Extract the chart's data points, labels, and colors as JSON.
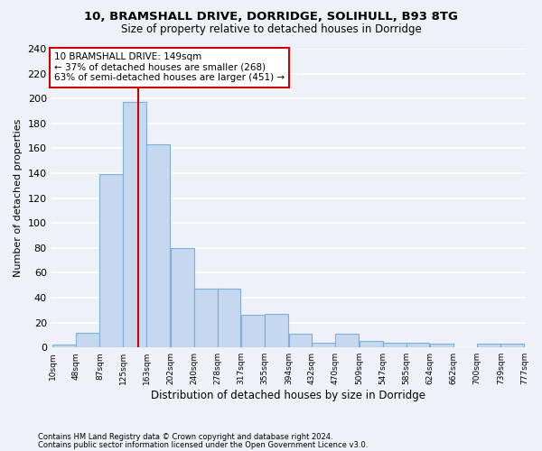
{
  "title1": "10, BRAMSHALL DRIVE, DORRIDGE, SOLIHULL, B93 8TG",
  "title2": "Size of property relative to detached houses in Dorridge",
  "xlabel": "Distribution of detached houses by size in Dorridge",
  "ylabel": "Number of detached properties",
  "footnote1": "Contains HM Land Registry data © Crown copyright and database right 2024.",
  "footnote2": "Contains public sector information licensed under the Open Government Licence v3.0.",
  "bar_left_edges": [
    10,
    48,
    87,
    125,
    163,
    202,
    240,
    278,
    317,
    355,
    394,
    432,
    470,
    509,
    547,
    585,
    624,
    662,
    700,
    739
  ],
  "bar_heights": [
    2,
    12,
    139,
    197,
    163,
    80,
    47,
    47,
    26,
    27,
    11,
    4,
    11,
    5,
    4,
    4,
    3,
    0,
    3,
    3
  ],
  "bin_width": 38,
  "bar_color": "#c5d8f0",
  "bar_edge_color": "#7bafd4",
  "tick_labels": [
    "10sqm",
    "48sqm",
    "87sqm",
    "125sqm",
    "163sqm",
    "202sqm",
    "240sqm",
    "278sqm",
    "317sqm",
    "355sqm",
    "394sqm",
    "432sqm",
    "470sqm",
    "509sqm",
    "547sqm",
    "585sqm",
    "624sqm",
    "662sqm",
    "700sqm",
    "739sqm",
    "777sqm"
  ],
  "property_line_x": 149,
  "annotation_line1": "10 BRAMSHALL DRIVE: 149sqm",
  "annotation_line2": "← 37% of detached houses are smaller (268)",
  "annotation_line3": "63% of semi-detached houses are larger (451) →",
  "annotation_box_color": "#ffffff",
  "annotation_box_edge_color": "#cc0000",
  "line_color": "#cc0000",
  "background_color": "#eef2f8",
  "grid_color": "#ffffff",
  "ylim": [
    0,
    240
  ],
  "yticks": [
    0,
    20,
    40,
    60,
    80,
    100,
    120,
    140,
    160,
    180,
    200,
    220,
    240
  ]
}
